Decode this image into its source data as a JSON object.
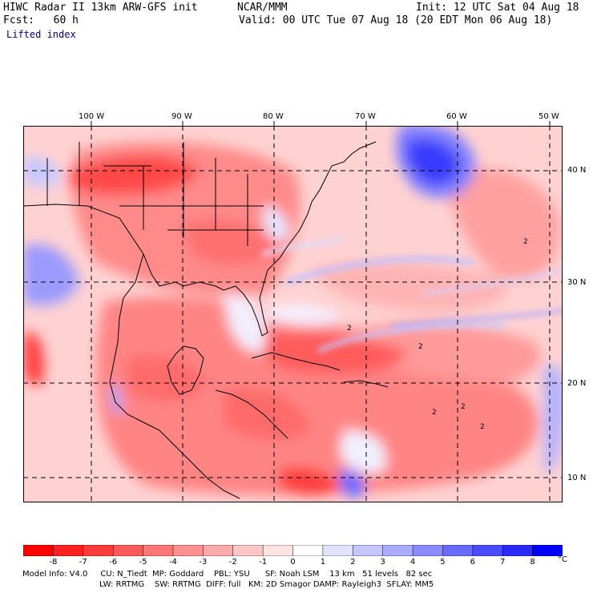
{
  "header": {
    "title": "HIWC Radar II 13km ARW-GFS init",
    "org": "NCAR/MMM",
    "init": "Init: 12 UTC Sat 04 Aug 18",
    "fcst": "Fcst:   60 h",
    "valid": "Valid: 00 UTC Tue 07 Aug 18 (20 EDT Mon 06 Aug 18)",
    "field": "Lifted index"
  },
  "axes": {
    "lon_labels": [
      "100 W",
      "90 W",
      "80 W",
      "70 W",
      "60 W",
      "50 W"
    ],
    "lat_labels": [
      "40 N",
      "30 N",
      "20 N",
      "10 N"
    ]
  },
  "legend": {
    "levels": [
      "-8",
      "-7",
      "-6",
      "-5",
      "-4",
      "-3",
      "-2",
      "-1",
      "0",
      "1",
      "2",
      "3",
      "4",
      "5",
      "6",
      "7",
      "8"
    ],
    "unit": "°C",
    "colors": [
      "#ff0000",
      "#ff2020",
      "#ff3c3c",
      "#ff5a5a",
      "#ff7676",
      "#ff9090",
      "#ffaaaa",
      "#ffc6c6",
      "#ffe2e2",
      "#ffffff",
      "#e2e2ff",
      "#c6c6ff",
      "#aaaaff",
      "#8a8aff",
      "#6a6aff",
      "#4a4aff",
      "#2a2aff",
      "#0000ff"
    ]
  },
  "footer": {
    "line1": "Model Info: V4.0     CU: N_Tiedt  MP: Goddard    PBL: YSU      SF: Noah LSM    13 km   51 levels   82 sec",
    "line2": "LW: RRTMG    SW: RRTMG  DIFF: full   KM: 2D Smagor DAMP: Rayleigh3  SFLAY: MM5"
  },
  "map_annotations": {
    "contour_labels": [
      "2",
      "2",
      "2",
      "2",
      "2",
      "2"
    ]
  }
}
